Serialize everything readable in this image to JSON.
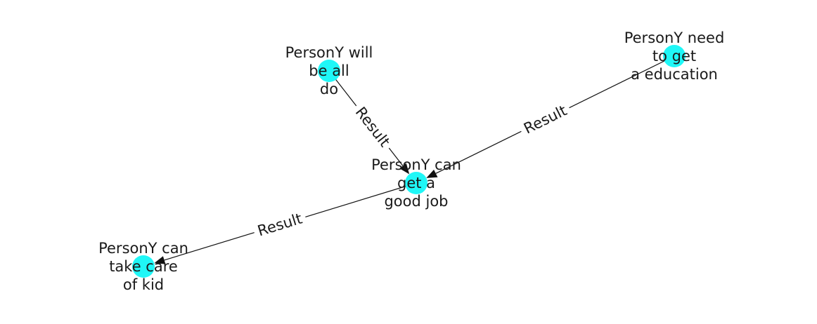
{
  "diagram": {
    "type": "directed-graph",
    "node_color": "#1ff7f7",
    "edge_color": "#111111",
    "nodes": [
      {
        "id": "n1",
        "lines": [
          "PersonY will",
          "be all",
          "do"
        ]
      },
      {
        "id": "n2",
        "lines": [
          "PersonY need",
          "to get",
          "a education"
        ]
      },
      {
        "id": "n3",
        "lines": [
          "PersonY can",
          "get a",
          "good job"
        ]
      },
      {
        "id": "n4",
        "lines": [
          "PersonY can",
          "take care",
          "of kid"
        ]
      }
    ],
    "edges": [
      {
        "from": "n1",
        "to": "n3",
        "label": "Result"
      },
      {
        "from": "n2",
        "to": "n3",
        "label": "Result"
      },
      {
        "from": "n3",
        "to": "n4",
        "label": "Result"
      }
    ]
  }
}
